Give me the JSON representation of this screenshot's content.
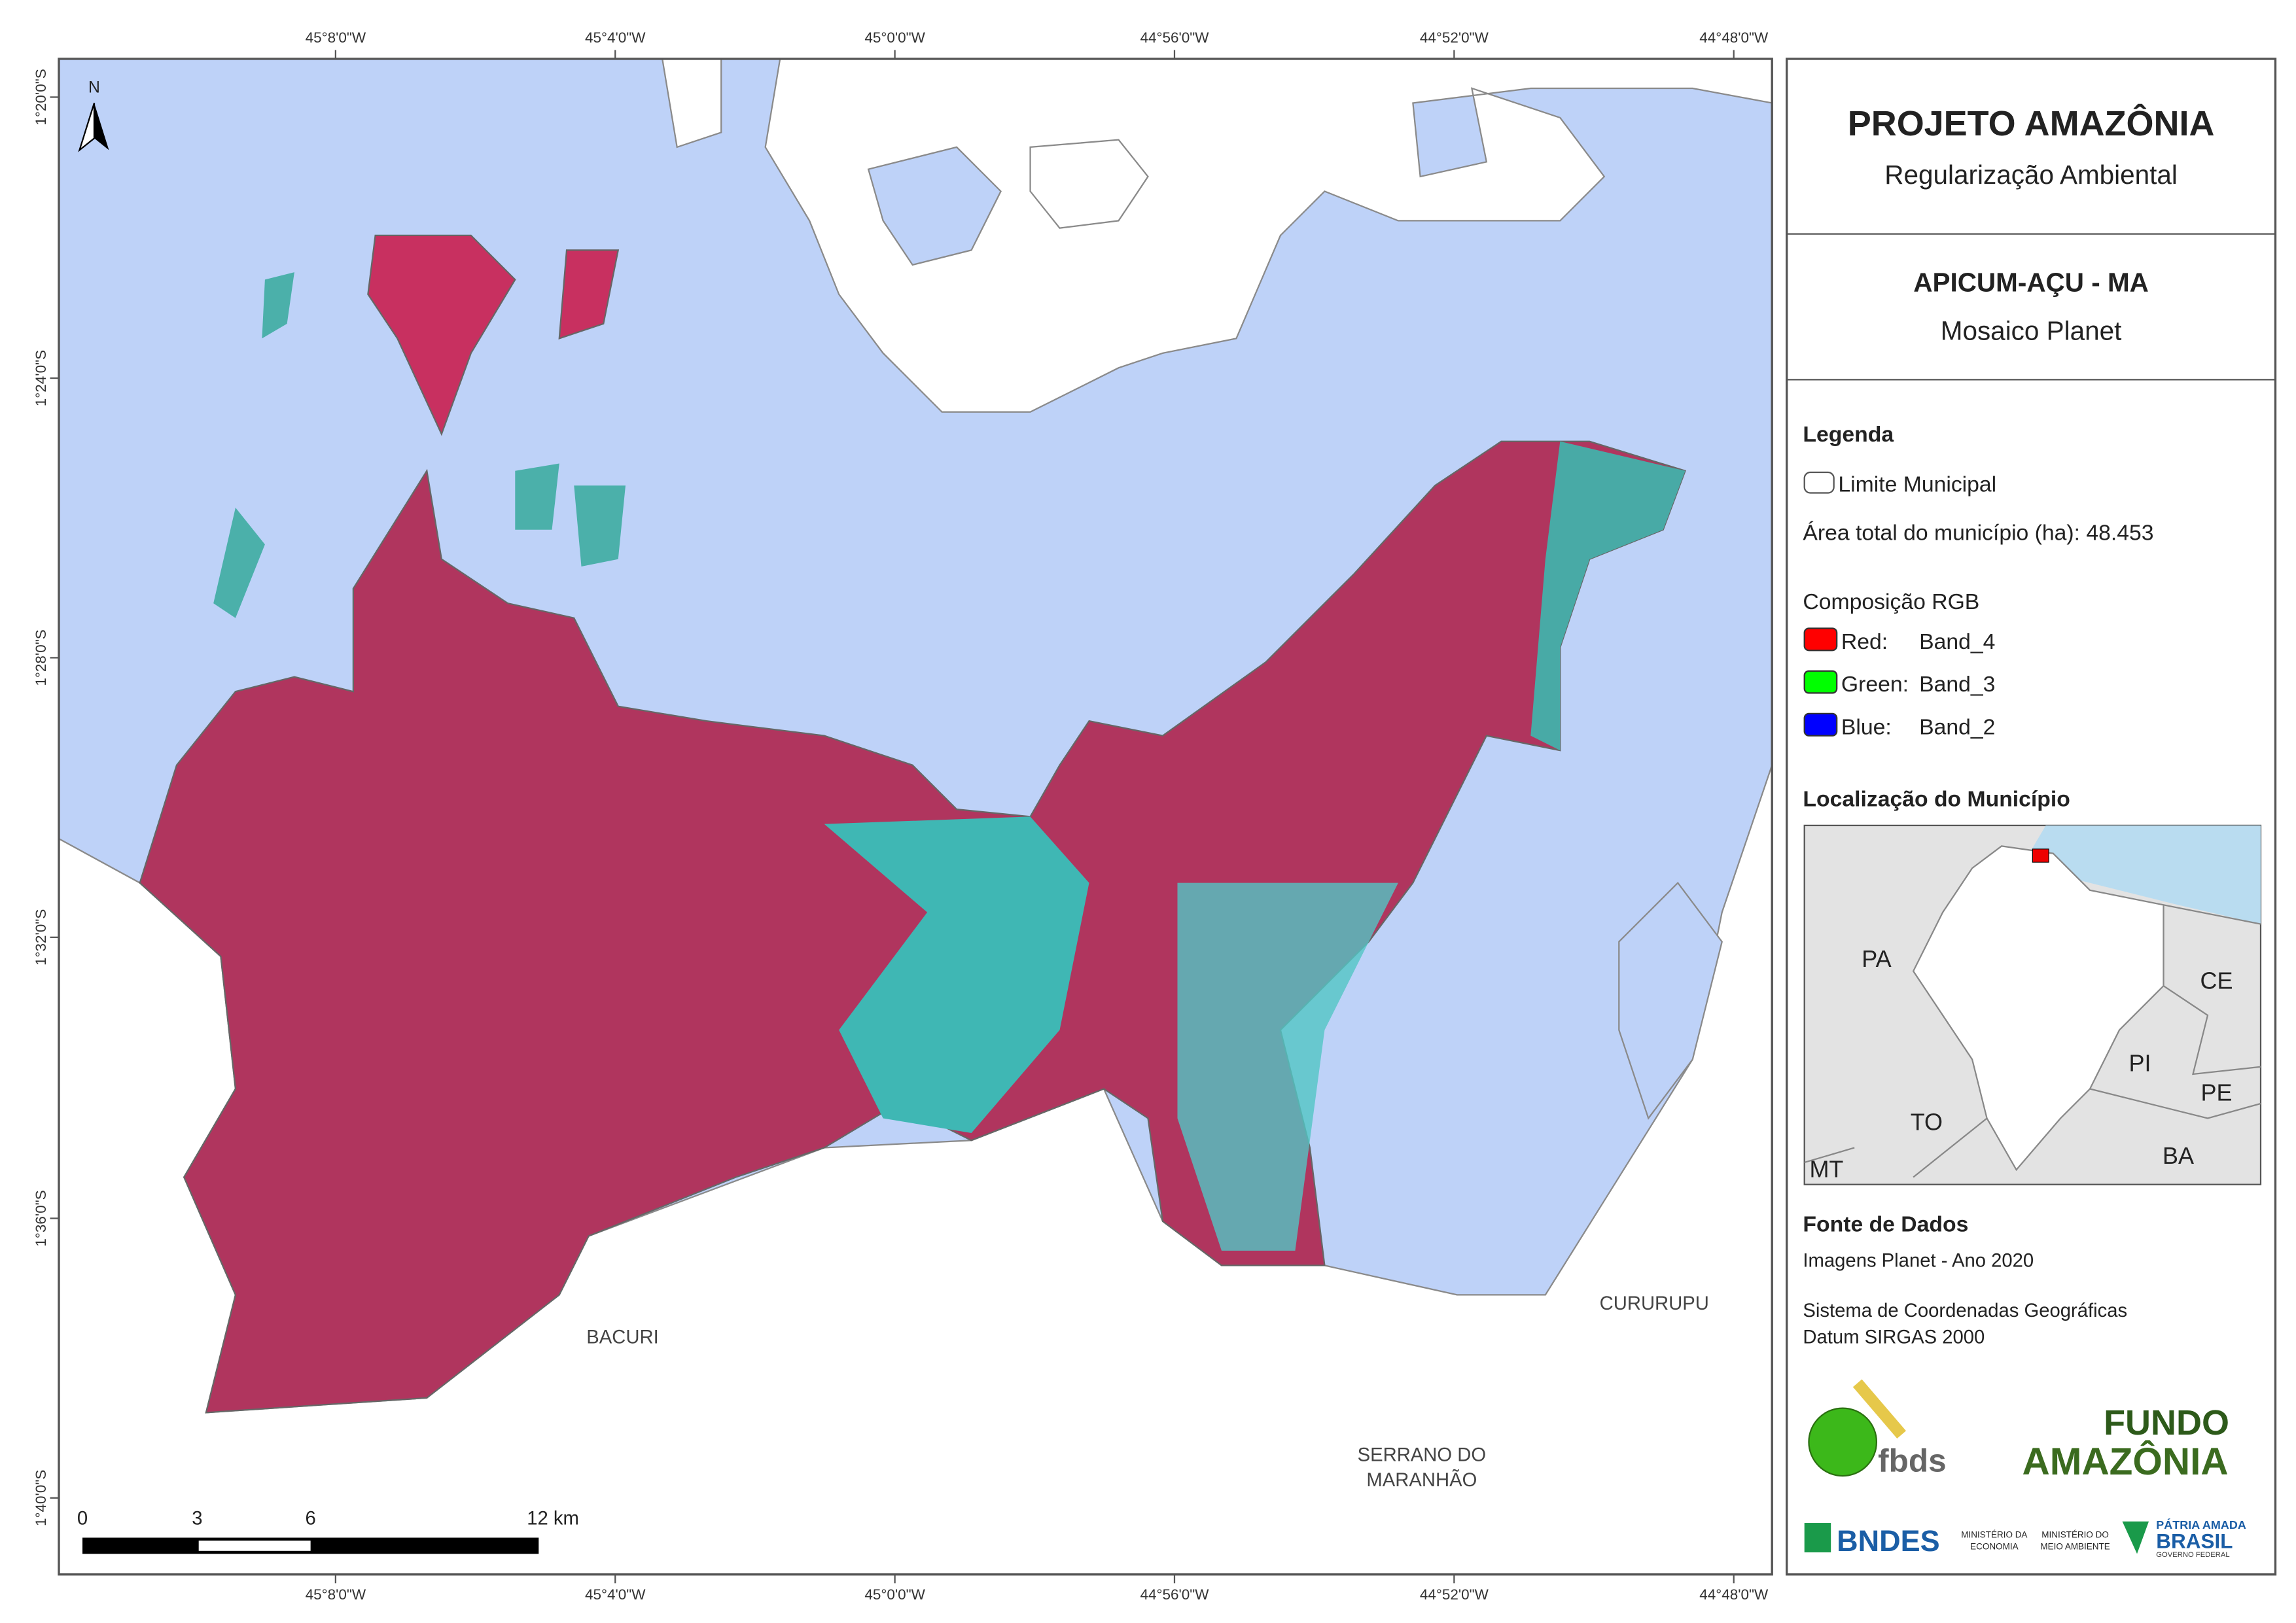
{
  "map": {
    "x_labels": [
      "45°8'0\"W",
      "45°4'0\"W",
      "45°0'0\"W",
      "44°56'0\"W",
      "44°52'0\"W",
      "44°48'0\"W"
    ],
    "y_labels": [
      "1°20'0\"S",
      "1°24'0\"S",
      "1°28'0\"S",
      "1°32'0\"S",
      "1°36'0\"S",
      "1°40'0\"S"
    ],
    "north": "N",
    "bacuri": "BACURI",
    "cururupu": "CURURUPU",
    "serrano": [
      "SERRANO DO",
      "MARANHÃO"
    ],
    "scale_bar": [
      "0",
      "3",
      "6",
      "12 km"
    ]
  },
  "panel": {
    "title": "PROJETO AMAZÔNIA",
    "subtitle": "Regularização Ambiental",
    "municipality": "APICUM-AÇU - MA",
    "mosaic": "Mosaico Planet",
    "legend": {
      "heading": "Legenda",
      "boundary": "Limite Municipal",
      "area": "Área total do município (ha): 48.453",
      "rgb_heading": "Composição RGB",
      "bands": [
        {
          "label": "Red:",
          "band": "Band_4",
          "color": "#ff0000"
        },
        {
          "label": "Green:",
          "band": "Band_3",
          "color": "#00ff00"
        },
        {
          "label": "Blue:",
          "band": "Band_2",
          "color": "#0000ff"
        }
      ]
    },
    "location": {
      "heading": "Localização do Município",
      "states": [
        "PA",
        "CE",
        "PI",
        "TO",
        "PE",
        "BA",
        "MT"
      ]
    },
    "sources": {
      "heading": "Fonte de Dados",
      "lines": [
        "Imagens Planet - Ano 2020",
        "Sistema de Coordenadas Geográficas",
        "Datum SIRGAS 2000"
      ]
    },
    "logos": {
      "fbds": "fbds",
      "fundo": "FUNDO",
      "amazonia": "AMAZÔNIA",
      "bndes": "BNDES",
      "min_economia": [
        "MINISTÉRIO DA",
        "ECONOMIA"
      ],
      "min_ambiente": [
        "MINISTÉRIO DO",
        "MEIO AMBIENTE"
      ],
      "patria": "PÁTRIA AMADA",
      "brasil": "BRASIL",
      "governo": "GOVERNO FEDERAL"
    }
  }
}
